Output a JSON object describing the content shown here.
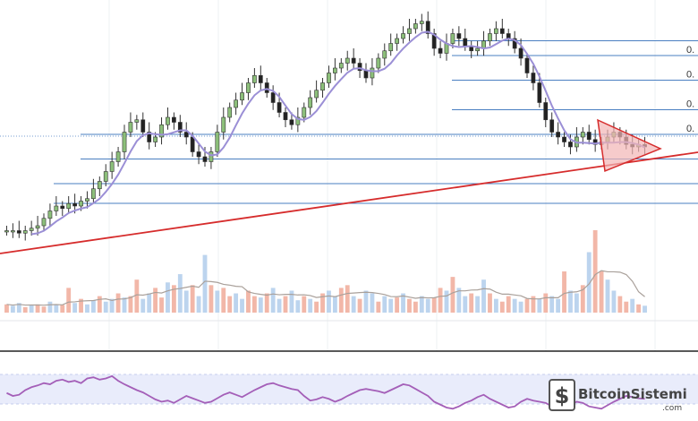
{
  "chart_data": [
    {
      "type": "candlestick",
      "panel": "price",
      "overlays": [
        "moving-average",
        "fibonacci-retracement",
        "trendline",
        "triangle-pattern"
      ],
      "moving_average_color": "#9b8fd6",
      "up_color": "#8cbf7a",
      "down_color": "#222222",
      "trendline_color": "#d62c2c",
      "triangle_fill": "#f2b5b5",
      "fib_line_color": "#4a7fc1",
      "fib_labels": [
        "0.",
        "0.",
        "0.",
        "0."
      ],
      "fib_levels": [
        0.12,
        0.2,
        0.3,
        0.4,
        0.5,
        0.62,
        0.72,
        0.78
      ],
      "closes": [
        0.9,
        0.9,
        0.91,
        0.9,
        0.89,
        0.88,
        0.85,
        0.82,
        0.8,
        0.81,
        0.79,
        0.8,
        0.78,
        0.77,
        0.73,
        0.7,
        0.66,
        0.62,
        0.58,
        0.5,
        0.46,
        0.45,
        0.5,
        0.54,
        0.52,
        0.47,
        0.44,
        0.46,
        0.5,
        0.52,
        0.58,
        0.6,
        0.62,
        0.58,
        0.5,
        0.44,
        0.4,
        0.37,
        0.34,
        0.3,
        0.27,
        0.3,
        0.34,
        0.38,
        0.42,
        0.45,
        0.47,
        0.44,
        0.4,
        0.36,
        0.33,
        0.3,
        0.26,
        0.24,
        0.22,
        0.2,
        0.22,
        0.25,
        0.28,
        0.24,
        0.2,
        0.17,
        0.14,
        0.12,
        0.1,
        0.08,
        0.06,
        0.05,
        0.1,
        0.16,
        0.18,
        0.14,
        0.1,
        0.12,
        0.15,
        0.17,
        0.16,
        0.13,
        0.1,
        0.08,
        0.1,
        0.12,
        0.16,
        0.2,
        0.26,
        0.3,
        0.38,
        0.45,
        0.5,
        0.52,
        0.54,
        0.56,
        0.52,
        0.5,
        0.53,
        0.55,
        0.54,
        0.52,
        0.5,
        0.52,
        0.55,
        0.56,
        0.55,
        0.56
      ]
    },
    {
      "type": "bar",
      "panel": "volume",
      "up_color": "#bcd4ee",
      "down_color": "#f2b7a8",
      "average_color": "#a9a09a",
      "values": [
        0.3,
        0.25,
        0.35,
        0.2,
        0.28,
        0.3,
        0.22,
        0.4,
        0.3,
        0.28,
        0.9,
        0.35,
        0.5,
        0.3,
        0.45,
        0.6,
        0.4,
        0.5,
        0.7,
        0.55,
        0.6,
        1.2,
        0.5,
        0.7,
        0.9,
        0.55,
        1.1,
        1.0,
        1.4,
        0.8,
        1.0,
        0.6,
        2.1,
        1.0,
        0.8,
        0.9,
        0.6,
        0.7,
        0.5,
        0.8,
        0.6,
        0.55,
        0.7,
        0.9,
        0.5,
        0.6,
        0.8,
        0.45,
        0.6,
        0.5,
        0.4,
        0.7,
        0.8,
        0.6,
        0.9,
        1.0,
        0.6,
        0.5,
        0.8,
        0.7,
        0.4,
        0.6,
        0.5,
        0.55,
        0.7,
        0.5,
        0.4,
        0.6,
        0.5,
        0.55,
        0.9,
        0.8,
        1.3,
        0.9,
        0.6,
        0.7,
        0.6,
        1.2,
        0.7,
        0.5,
        0.4,
        0.6,
        0.5,
        0.4,
        0.5,
        0.6,
        0.5,
        0.7,
        0.6,
        0.5,
        1.5,
        0.8,
        0.7,
        1.0,
        2.2,
        3.0,
        1.5,
        1.2,
        0.8,
        0.6,
        0.4,
        0.5,
        0.3,
        0.25
      ]
    },
    {
      "type": "line",
      "panel": "oscillator",
      "line_color": "#a45fb8",
      "band_color": "#e9ecfb",
      "values": [
        0.45,
        0.4,
        0.42,
        0.5,
        0.55,
        0.58,
        0.62,
        0.6,
        0.66,
        0.68,
        0.64,
        0.66,
        0.62,
        0.7,
        0.72,
        0.68,
        0.7,
        0.74,
        0.66,
        0.6,
        0.55,
        0.5,
        0.46,
        0.4,
        0.34,
        0.3,
        0.32,
        0.28,
        0.34,
        0.4,
        0.36,
        0.32,
        0.28,
        0.3,
        0.36,
        0.42,
        0.46,
        0.42,
        0.38,
        0.44,
        0.5,
        0.55,
        0.6,
        0.62,
        0.58,
        0.55,
        0.52,
        0.5,
        0.4,
        0.32,
        0.34,
        0.38,
        0.35,
        0.3,
        0.34,
        0.4,
        0.45,
        0.5,
        0.52,
        0.5,
        0.48,
        0.45,
        0.5,
        0.55,
        0.6,
        0.58,
        0.52,
        0.46,
        0.4,
        0.3,
        0.25,
        0.2,
        0.18,
        0.22,
        0.28,
        0.32,
        0.38,
        0.42,
        0.35,
        0.3,
        0.25,
        0.2,
        0.22,
        0.3,
        0.35,
        0.32,
        0.3,
        0.28,
        0.22,
        0.18,
        0.2,
        0.25,
        0.3,
        0.28,
        0.22,
        0.2,
        0.18,
        0.24,
        0.3,
        0.35,
        0.4,
        0.38,
        0.36,
        0.35
      ]
    }
  ],
  "watermark": {
    "brand": "BitcoinSistemi",
    "domain": ".com",
    "icon": "dollar-sign-icon"
  }
}
